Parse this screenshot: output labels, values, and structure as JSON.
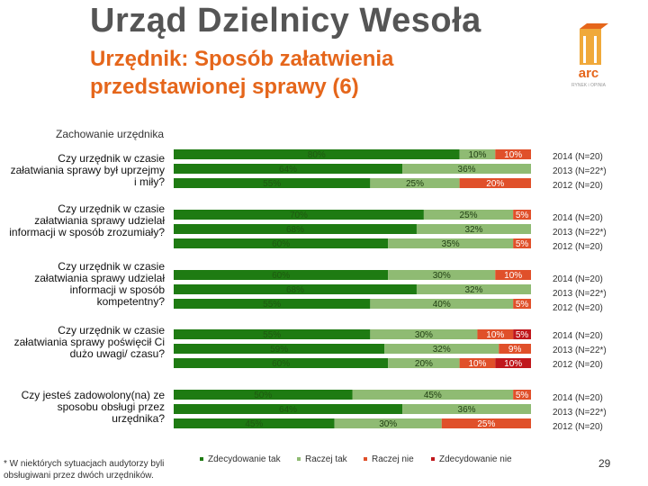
{
  "header": {
    "title": "Urząd Dzielnicy Wesoła",
    "subtitle": "Urzędnik: Sposób załatwienia przedstawionej sprawy (6)",
    "logo_text": "arc",
    "logo_tagline": "RYNEK i OPINIA"
  },
  "section_label": "Zachowanie urzędnika",
  "footnote": "* W niektórych sytuacjach audytorzy byli obsługiwani przez dwóch urzędników.",
  "page_number": "29",
  "colors": {
    "Zdecydowanie tak": "#1e7b12",
    "Raczej tak": "#8fbb73",
    "Raczej nie": "#e0502a",
    "Zdecydowanie nie": "#c0171c"
  },
  "chart_data": {
    "type": "bar",
    "orientation": "horizontal-stacked-100",
    "categories": [
      "Czy urzędnik w czasie załatwiania sprawy był uprzejmy i miły?",
      "Czy urzędnik w czasie załatwiania sprawy udzielał informacji w sposób zrozumiały?",
      "Czy urzędnik w czasie załatwiania sprawy udzielał informacji w sposób kompetentny?",
      "Czy urzędnik w czasie załatwiania sprawy poświęcił Ci dużo uwagi/ czasu?",
      "Czy jesteś zadowolony(na) ze sposobu obsługi przez urzędnika?"
    ],
    "years": [
      "2014 (N=20)",
      "2013 (N=22*)",
      "2012 (N=20)"
    ],
    "series": [
      {
        "name": "Zdecydowanie tak",
        "values": [
          [
            80,
            64,
            55
          ],
          [
            70,
            68,
            60
          ],
          [
            60,
            68,
            55
          ],
          [
            55,
            59,
            60
          ],
          [
            50,
            64,
            45
          ]
        ]
      },
      {
        "name": "Raczej tak",
        "values": [
          [
            10,
            36,
            25
          ],
          [
            25,
            32,
            35
          ],
          [
            30,
            32,
            40
          ],
          [
            30,
            32,
            20
          ],
          [
            45,
            36,
            30
          ]
        ]
      },
      {
        "name": "Raczej nie",
        "values": [
          [
            10,
            0,
            20
          ],
          [
            5,
            0,
            5
          ],
          [
            10,
            0,
            5
          ],
          [
            10,
            9,
            10
          ],
          [
            5,
            0,
            25
          ]
        ]
      },
      {
        "name": "Zdecydowanie nie",
        "values": [
          [
            0,
            0,
            0
          ],
          [
            0,
            0,
            0
          ],
          [
            0,
            0,
            0
          ],
          [
            5,
            0,
            10
          ],
          [
            0,
            0,
            0
          ]
        ]
      }
    ],
    "value_suffix": "%",
    "legend_position": "bottom",
    "xlim": [
      0,
      100
    ]
  }
}
